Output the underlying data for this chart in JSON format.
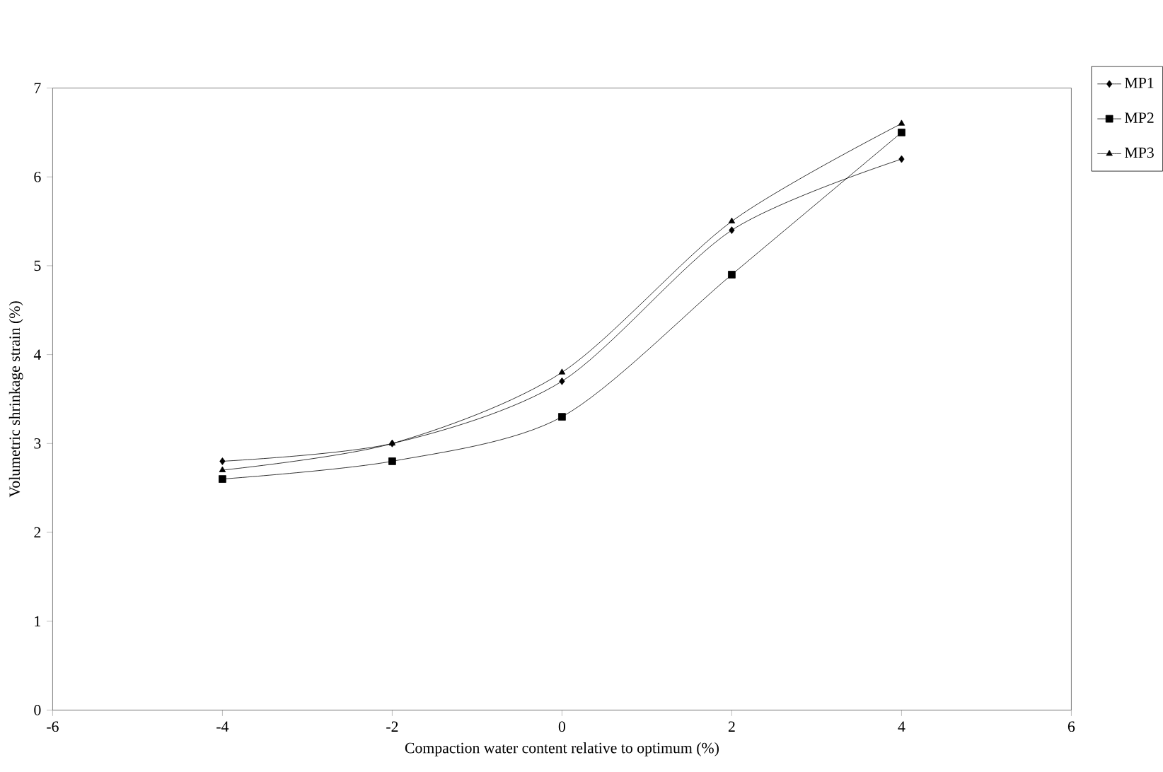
{
  "chart_data": {
    "type": "line",
    "xlabel": "Compaction water content relative to optimum (%)",
    "ylabel": "Volumetric shrinkage strain (%)",
    "x": [
      -4,
      -2,
      0,
      2,
      4
    ],
    "series": [
      {
        "name": "MP1",
        "color": "#000000",
        "marker": "diamond",
        "values": [
          2.8,
          3.0,
          3.7,
          5.4,
          6.2
        ]
      },
      {
        "name": "MP2",
        "color": "#000000",
        "marker": "square",
        "values": [
          2.6,
          2.8,
          3.3,
          4.9,
          6.5
        ]
      },
      {
        "name": "MP3",
        "color": "#000000",
        "marker": "triangle",
        "values": [
          2.7,
          3.0,
          3.8,
          5.5,
          6.6
        ]
      }
    ],
    "xlim": [
      -6,
      6
    ],
    "xticks": [
      -6,
      -4,
      -2,
      0,
      2,
      4,
      6
    ],
    "ylim": [
      0,
      7
    ],
    "yticks": [
      0,
      1,
      2,
      3,
      4,
      5,
      6,
      7
    ],
    "grid": false,
    "legend": "top right",
    "line_style": "solid"
  }
}
